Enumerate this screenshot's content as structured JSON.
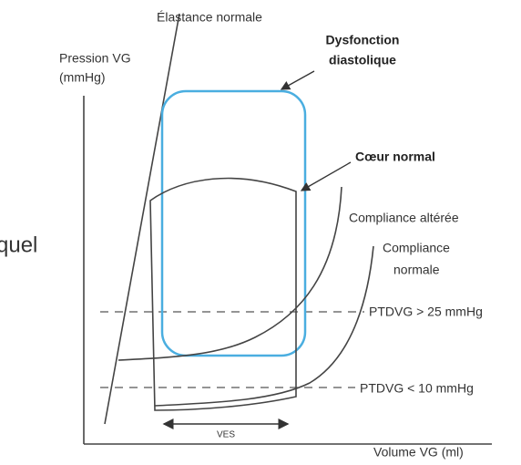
{
  "labels": {
    "elastance": "Élastance normale",
    "y_axis_line1": "Pression VG",
    "y_axis_line2": "(mmHg)",
    "dysfunction_line1": "Dysfonction",
    "dysfunction_line2": "diastolique",
    "normal_heart": "Cœur normal",
    "altered_compliance": "Compliance altérée",
    "normal_compliance_line1": "Compliance",
    "normal_compliance_line2": "normale",
    "ptdvg_high": "PTDVG > 25 mmHg",
    "ptdvg_low": "PTDVG < 10 mmHg",
    "ves": "VES",
    "x_axis": "Volume VG (ml)",
    "cropped_text": "quel"
  }
}
